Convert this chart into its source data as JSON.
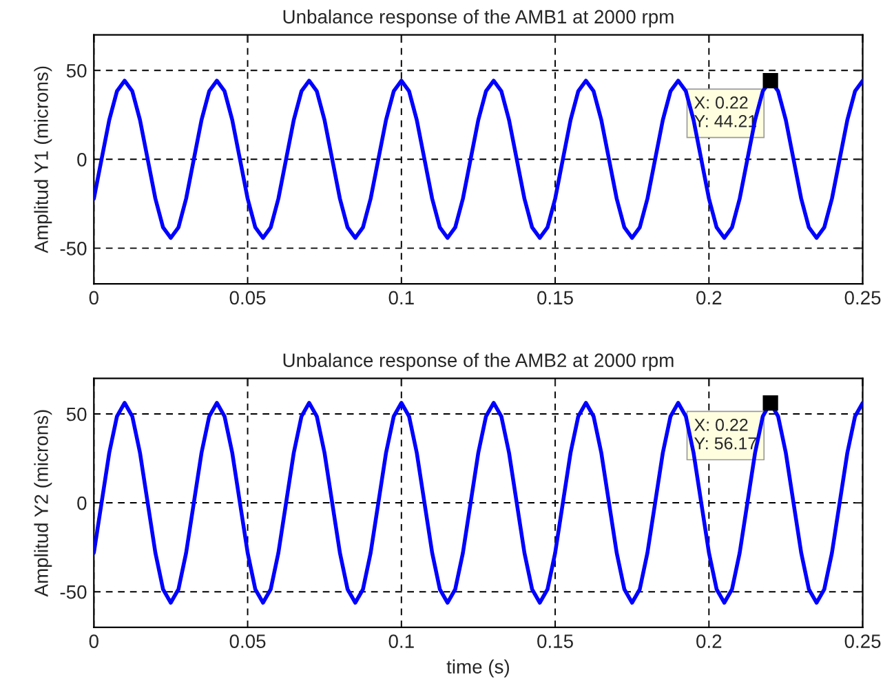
{
  "chart_data": [
    {
      "type": "line",
      "title": "Unbalance response of the AMB1 at 2000 rpm",
      "ylabel": "Amplitud Y1 (microns)",
      "x": [
        0,
        0.0025,
        0.005,
        0.0075,
        0.01,
        0.0125,
        0.015,
        0.0175,
        0.02,
        0.0225,
        0.025,
        0.0275,
        0.03,
        0.0325,
        0.035,
        0.0375,
        0.04,
        0.0425,
        0.045,
        0.0475,
        0.05,
        0.0525,
        0.055,
        0.0575,
        0.06,
        0.0625,
        0.065,
        0.0675,
        0.07,
        0.0725,
        0.075,
        0.0775,
        0.08,
        0.0825,
        0.085,
        0.0875,
        0.09,
        0.0925,
        0.095,
        0.0975,
        0.1,
        0.1025,
        0.105,
        0.1075,
        0.11,
        0.1125,
        0.115,
        0.1175,
        0.12,
        0.1225,
        0.125,
        0.1275,
        0.13,
        0.1325,
        0.135,
        0.1375,
        0.14,
        0.1425,
        0.145,
        0.1475,
        0.15,
        0.1525,
        0.155,
        0.1575,
        0.16,
        0.1625,
        0.165,
        0.1675,
        0.17,
        0.1725,
        0.175,
        0.1775,
        0.18,
        0.1825,
        0.185,
        0.1875,
        0.19,
        0.1925,
        0.195,
        0.1975,
        0.2,
        0.2025,
        0.205,
        0.2075,
        0.21,
        0.2125,
        0.215,
        0.2175,
        0.22,
        0.2225,
        0.225,
        0.2275,
        0.23,
        0.2325,
        0.235,
        0.2375,
        0.24,
        0.2425,
        0.245,
        0.2475,
        0.25
      ],
      "series": [
        {
          "color": "#0000ff",
          "values": [
            -22.1,
            0,
            22.1,
            38.3,
            44.2,
            38.3,
            22.1,
            0,
            -22.1,
            -38.3,
            -44.2,
            -38.3,
            -22.1,
            0,
            22.1,
            38.3,
            44.2,
            38.3,
            22.1,
            0,
            -22.1,
            -38.3,
            -44.2,
            -38.3,
            -22.1,
            0,
            22.1,
            38.3,
            44.2,
            38.3,
            22.1,
            0,
            -22.1,
            -38.3,
            -44.2,
            -38.3,
            -22.1,
            0,
            22.1,
            38.3,
            44.2,
            38.3,
            22.1,
            0,
            -22.1,
            -38.3,
            -44.2,
            -38.3,
            -22.1,
            0,
            22.1,
            38.3,
            44.2,
            38.3,
            22.1,
            0,
            -22.1,
            -38.3,
            -44.2,
            -38.3,
            -22.1,
            0,
            22.1,
            38.3,
            44.2,
            38.3,
            22.1,
            0,
            -22.1,
            -38.3,
            -44.2,
            -38.3,
            -22.1,
            0,
            22.1,
            38.3,
            44.2,
            38.3,
            22.1,
            0,
            -22.1,
            -38.3,
            -44.2,
            -38.3,
            -22.1,
            0,
            22.1,
            38.3,
            44.2,
            38.3,
            22.1,
            0,
            -22.1,
            -38.3,
            -44.2,
            -38.3,
            -22.1,
            0,
            22.1,
            38.3,
            44.2
          ]
        }
      ],
      "annotations": [
        {
          "text": "X: 0.22\nY: 44.21",
          "x": 0.22,
          "y": 44.21
        }
      ],
      "xlim": [
        0,
        0.25
      ],
      "xticks": [
        0,
        0.05,
        0.1,
        0.15,
        0.2,
        0.25
      ],
      "ylim": [
        -70,
        70
      ],
      "yticks": [
        -50,
        0,
        50
      ],
      "grid": true,
      "line_style": "solid"
    },
    {
      "type": "line",
      "title": "Unbalance response of the AMB2 at 2000 rpm",
      "xlabel": "time (s)",
      "ylabel": "Amplitud Y2 (microns)",
      "x": [
        0,
        0.0025,
        0.005,
        0.0075,
        0.01,
        0.0125,
        0.015,
        0.0175,
        0.02,
        0.0225,
        0.025,
        0.0275,
        0.03,
        0.0325,
        0.035,
        0.0375,
        0.04,
        0.0425,
        0.045,
        0.0475,
        0.05,
        0.0525,
        0.055,
        0.0575,
        0.06,
        0.0625,
        0.065,
        0.0675,
        0.07,
        0.0725,
        0.075,
        0.0775,
        0.08,
        0.0825,
        0.085,
        0.0875,
        0.09,
        0.0925,
        0.095,
        0.0975,
        0.1,
        0.1025,
        0.105,
        0.1075,
        0.11,
        0.1125,
        0.115,
        0.1175,
        0.12,
        0.1225,
        0.125,
        0.1275,
        0.13,
        0.1325,
        0.135,
        0.1375,
        0.14,
        0.1425,
        0.145,
        0.1475,
        0.15,
        0.1525,
        0.155,
        0.1575,
        0.16,
        0.1625,
        0.165,
        0.1675,
        0.17,
        0.1725,
        0.175,
        0.1775,
        0.18,
        0.1825,
        0.185,
        0.1875,
        0.19,
        0.1925,
        0.195,
        0.1975,
        0.2,
        0.2025,
        0.205,
        0.2075,
        0.21,
        0.2125,
        0.215,
        0.2175,
        0.22,
        0.2225,
        0.225,
        0.2275,
        0.23,
        0.2325,
        0.235,
        0.2375,
        0.24,
        0.2425,
        0.245,
        0.2475,
        0.25
      ],
      "series": [
        {
          "color": "#0000ff",
          "values": [
            -28.1,
            0,
            28.1,
            48.6,
            56.2,
            48.6,
            28.1,
            0,
            -28.1,
            -48.6,
            -56.2,
            -48.6,
            -28.1,
            0,
            28.1,
            48.6,
            56.2,
            48.6,
            28.1,
            0,
            -28.1,
            -48.6,
            -56.2,
            -48.6,
            -28.1,
            0,
            28.1,
            48.6,
            56.2,
            48.6,
            28.1,
            0,
            -28.1,
            -48.6,
            -56.2,
            -48.6,
            -28.1,
            0,
            28.1,
            48.6,
            56.2,
            48.6,
            28.1,
            0,
            -28.1,
            -48.6,
            -56.2,
            -48.6,
            -28.1,
            0,
            28.1,
            48.6,
            56.2,
            48.6,
            28.1,
            0,
            -28.1,
            -48.6,
            -56.2,
            -48.6,
            -28.1,
            0,
            28.1,
            48.6,
            56.2,
            48.6,
            28.1,
            0,
            -28.1,
            -48.6,
            -56.2,
            -48.6,
            -28.1,
            0,
            28.1,
            48.6,
            56.2,
            48.6,
            28.1,
            0,
            -28.1,
            -48.6,
            -56.2,
            -48.6,
            -28.1,
            0,
            28.1,
            48.6,
            56.2,
            48.6,
            28.1,
            0,
            -28.1,
            -48.6,
            -56.2,
            -48.6,
            -28.1,
            0,
            28.1,
            48.6,
            56.2
          ]
        }
      ],
      "annotations": [
        {
          "text": "X: 0.22\nY: 56.17",
          "x": 0.22,
          "y": 56.17
        }
      ],
      "xlim": [
        0,
        0.25
      ],
      "xticks": [
        0,
        0.05,
        0.1,
        0.15,
        0.2,
        0.25
      ],
      "ylim": [
        -70,
        70
      ],
      "yticks": [
        -50,
        0,
        50
      ],
      "grid": true,
      "line_style": "solid"
    }
  ]
}
